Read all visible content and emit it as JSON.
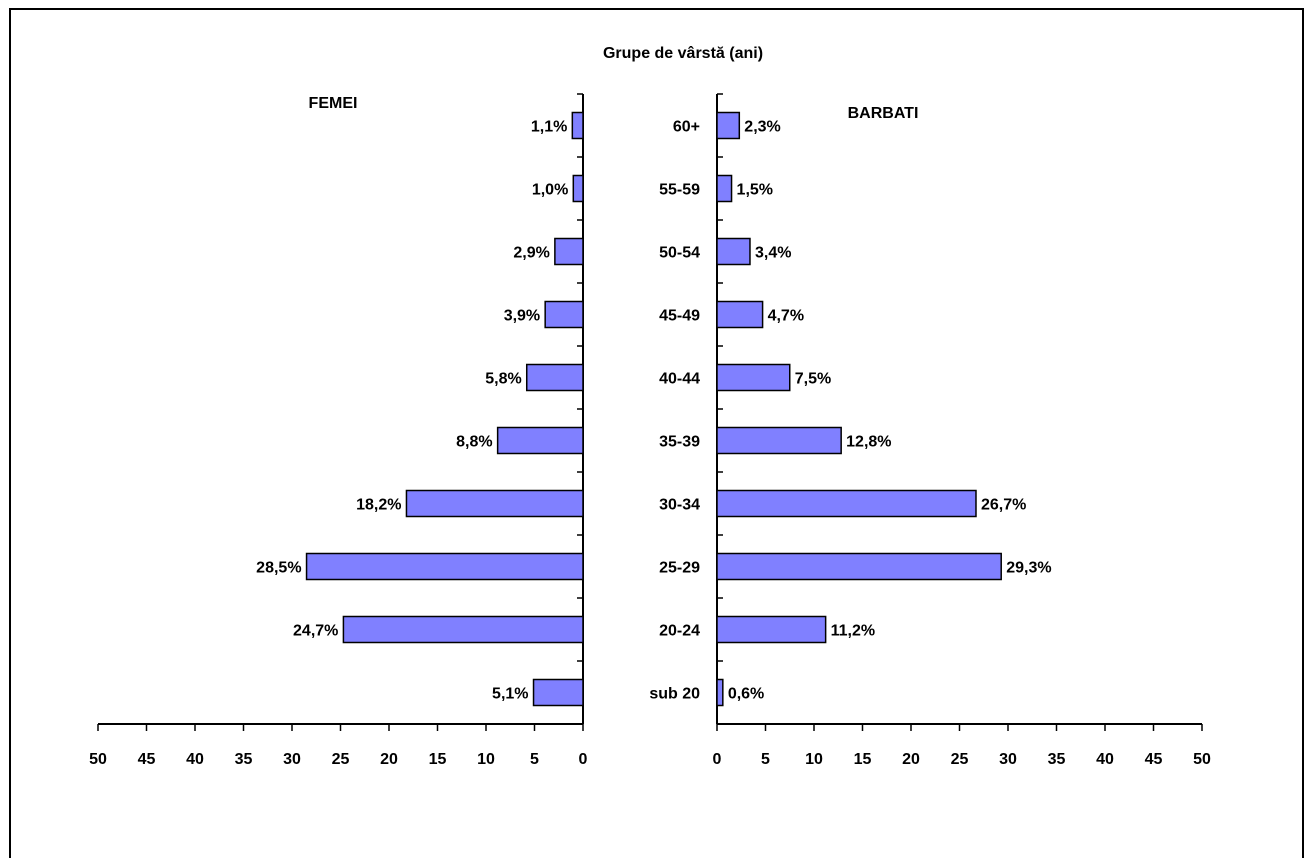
{
  "chart_data": {
    "type": "bar",
    "orientation": "horizontal",
    "layout": "population-pyramid",
    "title": "Grupe de vârstă (ani)",
    "categories": [
      "sub 20",
      "20-24",
      "25-29",
      "30-34",
      "35-39",
      "40-44",
      "45-49",
      "50-54",
      "55-59",
      "60+"
    ],
    "series": [
      {
        "name": "FEMEI",
        "side": "left",
        "values": [
          5.1,
          24.7,
          28.5,
          18.2,
          8.8,
          5.8,
          3.9,
          2.9,
          1.0,
          1.1
        ],
        "labels": [
          "5,1%",
          "24,7%",
          "28,5%",
          "18,2%",
          "8,8%",
          "5,8%",
          "3,9%",
          "2,9%",
          "1,0%",
          "1,1%"
        ]
      },
      {
        "name": "BARBATI",
        "side": "right",
        "values": [
          0.6,
          11.2,
          29.3,
          26.7,
          12.8,
          7.5,
          4.7,
          3.4,
          1.5,
          2.3
        ],
        "labels": [
          "0,6%",
          "11,2%",
          "29,3%",
          "26,7%",
          "12,8%",
          "7,5%",
          "4,7%",
          "3,4%",
          "1,5%",
          "2,3%"
        ]
      }
    ],
    "xlim": [
      0,
      50
    ],
    "xticks": [
      "0",
      "5",
      "10",
      "15",
      "20",
      "25",
      "30",
      "35",
      "40",
      "45",
      "50"
    ],
    "grid": false,
    "legend": "none",
    "bar_color": "#8080ff",
    "bar_edge_color": "#000000"
  }
}
